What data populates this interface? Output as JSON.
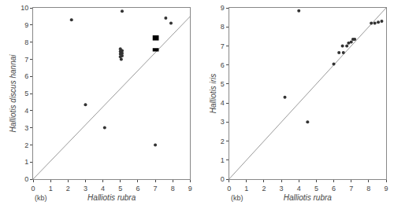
{
  "chart_data": [
    {
      "type": "scatter",
      "xlabel": "Halliotis rubra",
      "ylabel": "Halliotis discus hannai",
      "xlim": [
        0,
        9
      ],
      "ylim": [
        0,
        10
      ],
      "xticks": [
        0,
        1,
        2,
        3,
        4,
        5,
        6,
        7,
        8,
        9
      ],
      "yticks": [
        0,
        1,
        2,
        3,
        4,
        5,
        6,
        7,
        8,
        9,
        10
      ],
      "grid": false,
      "annotations": [
        {
          "text": "(kb)"
        }
      ],
      "series": [
        {
          "type": "line",
          "color": "#999999",
          "x": [
            0.0,
            9.0
          ],
          "y": [
            0.0,
            9.5
          ]
        },
        {
          "type": "scatter",
          "color": "#333333",
          "x": [
            2.2,
            5.1,
            7.6,
            7.9,
            3.0,
            4.1,
            5.0,
            5.0,
            5.0,
            5.0,
            5.05,
            5.1,
            5.1,
            5.1,
            7.0
          ],
          "y": [
            9.3,
            9.8,
            9.4,
            9.1,
            4.35,
            3.0,
            7.6,
            7.45,
            7.3,
            7.15,
            7.0,
            7.5,
            7.35,
            7.2,
            2.0
          ]
        },
        {
          "type": "rect",
          "color": "#000000",
          "x": [
            6.85,
            7.2
          ],
          "y": [
            8.1,
            8.4
          ]
        },
        {
          "type": "rect",
          "color": "#000000",
          "x": [
            6.85,
            7.2
          ],
          "y": [
            7.45,
            7.65
          ]
        }
      ]
    },
    {
      "type": "scatter",
      "xlabel": "Halliotis rubra",
      "ylabel": "Halliotis iris",
      "xlim": [
        0,
        9
      ],
      "ylim": [
        0,
        9
      ],
      "xticks": [
        0,
        1,
        2,
        3,
        4,
        5,
        6,
        7,
        8,
        9
      ],
      "yticks": [
        0,
        1,
        2,
        3,
        4,
        5,
        6,
        7,
        8,
        9
      ],
      "grid": false,
      "annotations": [
        {
          "text": "(kb)"
        }
      ],
      "series": [
        {
          "type": "line",
          "color": "#999999",
          "x": [
            0.0,
            9.0
          ],
          "y": [
            0.0,
            9.0
          ]
        },
        {
          "type": "scatter",
          "color": "#333333",
          "x": [
            3.2,
            4.0,
            4.5,
            6.0,
            6.3,
            6.55,
            6.5,
            6.75,
            6.85,
            7.0,
            7.1,
            7.2,
            8.15,
            8.35,
            8.55,
            8.75
          ],
          "y": [
            4.3,
            8.85,
            3.0,
            6.05,
            6.65,
            6.65,
            7.0,
            7.0,
            7.15,
            7.2,
            7.35,
            7.35,
            8.2,
            8.2,
            8.25,
            8.3
          ]
        }
      ]
    }
  ]
}
